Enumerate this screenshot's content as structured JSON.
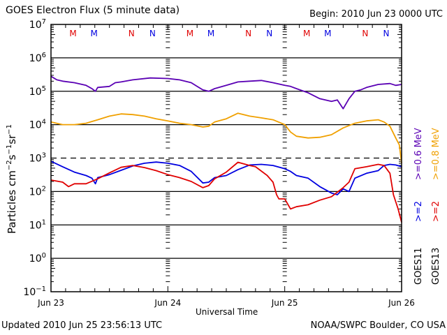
{
  "header": {
    "title": "GOES Electron Flux (5 minute data)",
    "begin": "Begin: 2010 Jun 23 0000 UTC"
  },
  "footer": {
    "updated": "Updated 2010 Jun 25 23:56:13 UTC",
    "credit": "NOAA/SWPC Boulder, CO USA"
  },
  "chart_data": {
    "type": "line",
    "title": "GOES Electron Flux (5 minute data)",
    "xlabel": "Universal Time",
    "ylabel": "Particles cm⁻²s⁻¹sr⁻¹",
    "yscale": "log",
    "ylim": [
      0.1,
      10000000
    ],
    "xlim_days": [
      0,
      3
    ],
    "x_tick_labels": [
      "Jun 23",
      "Jun 24",
      "Jun 25",
      "Jun 26"
    ],
    "y_tick_labels": [
      {
        "exp": "7",
        "value": 10000000
      },
      {
        "exp": "6",
        "value": 1000000
      },
      {
        "exp": "5",
        "value": 100000
      },
      {
        "exp": "4",
        "value": 10000
      },
      {
        "exp": "3",
        "value": 1000
      },
      {
        "exp": "2",
        "value": 100
      },
      {
        "exp": "1",
        "value": 10
      },
      {
        "exp": "0",
        "value": 1
      },
      {
        "exp": "−1",
        "value": 0.1
      }
    ],
    "gridlines": [
      100000,
      10000,
      100,
      10,
      1,
      1000000
    ],
    "dashed_threshold": 1000,
    "markers": [
      {
        "label": "M",
        "day": 0.35,
        "color": "#e00000"
      },
      {
        "label": "M",
        "day": 0.53,
        "color": "#0000e0"
      },
      {
        "label": "N",
        "day": 0.85,
        "color": "#e00000"
      },
      {
        "label": "N",
        "day": 1.03,
        "color": "#0000e0"
      },
      {
        "label": "M",
        "day": 1.35,
        "color": "#e00000"
      },
      {
        "label": "M",
        "day": 1.53,
        "color": "#0000e0"
      },
      {
        "label": "N",
        "day": 1.85,
        "color": "#e00000"
      },
      {
        "label": "N",
        "day": 2.03,
        "color": "#0000e0"
      },
      {
        "label": "M",
        "day": 2.35,
        "color": "#e00000"
      },
      {
        "label": "M",
        "day": 2.53,
        "color": "#0000e0"
      },
      {
        "label": "N",
        "day": 2.85,
        "color": "#e00000"
      },
      {
        "label": "N",
        "day": 3.03,
        "color": "#0000e0"
      }
    ],
    "legend": [
      {
        "text": "GOES11",
        "color": "#000000"
      },
      {
        "text": "GOES13",
        "color": "#000000"
      },
      {
        "text": ">=2",
        "color": "#0000e0"
      },
      {
        "text": ">=2",
        "color": "#e00000"
      },
      {
        "text": ">=0.6 MeV",
        "color": "#5a00b4"
      },
      {
        "text": ">=0.8 MeV",
        "color": "#f0a000"
      }
    ],
    "legend_placement": "right",
    "series": [
      {
        "name": "GOES11 >=0.6 MeV",
        "color": "#5a00b4",
        "x": [
          0,
          0.05,
          0.1,
          0.2,
          0.3,
          0.35,
          0.38,
          0.4,
          0.5,
          0.55,
          0.6,
          0.7,
          0.85,
          1.0,
          1.1,
          1.2,
          1.25,
          1.3,
          1.35,
          1.4,
          1.5,
          1.6,
          1.7,
          1.8,
          1.9,
          2.0,
          2.05,
          2.1,
          2.2,
          2.3,
          2.4,
          2.45,
          2.5,
          2.55,
          2.6,
          2.65,
          2.7,
          2.8,
          2.9,
          2.95,
          3.0
        ],
        "y": [
          280000,
          220000,
          200000,
          180000,
          150000,
          120000,
          100000,
          130000,
          140000,
          180000,
          190000,
          220000,
          250000,
          240000,
          220000,
          180000,
          140000,
          110000,
          100000,
          120000,
          150000,
          190000,
          200000,
          210000,
          180000,
          150000,
          140000,
          120000,
          90000,
          60000,
          50000,
          55000,
          30000,
          60000,
          100000,
          110000,
          130000,
          160000,
          170000,
          150000,
          160000
        ]
      },
      {
        "name": "GOES13 >=0.8 MeV",
        "color": "#f0a000",
        "x": [
          0,
          0.1,
          0.2,
          0.3,
          0.4,
          0.5,
          0.6,
          0.7,
          0.8,
          0.9,
          1.0,
          1.1,
          1.2,
          1.3,
          1.35,
          1.4,
          1.5,
          1.6,
          1.7,
          1.8,
          1.9,
          2.0,
          2.05,
          2.1,
          2.2,
          2.3,
          2.4,
          2.5,
          2.6,
          2.7,
          2.8,
          2.85,
          2.9,
          2.95,
          2.98,
          3.0
        ],
        "y": [
          12000,
          10000,
          10000,
          11000,
          14000,
          18000,
          21000,
          20000,
          18000,
          15000,
          13000,
          11000,
          10000,
          8500,
          9000,
          12000,
          15000,
          22000,
          18000,
          16000,
          14000,
          10000,
          6000,
          4500,
          4000,
          4200,
          5000,
          8000,
          11000,
          13000,
          14000,
          12000,
          9000,
          4000,
          2500,
          700
        ]
      },
      {
        "name": "GOES11 >=2 MeV",
        "color": "#0000e0",
        "x": [
          0,
          0.1,
          0.2,
          0.3,
          0.35,
          0.38,
          0.4,
          0.5,
          0.6,
          0.7,
          0.8,
          0.9,
          1.0,
          1.1,
          1.2,
          1.3,
          1.35,
          1.4,
          1.5,
          1.6,
          1.7,
          1.8,
          1.9,
          2.0,
          2.05,
          2.1,
          2.2,
          2.3,
          2.4,
          2.45,
          2.5,
          2.55,
          2.6,
          2.7,
          2.8,
          2.85,
          2.9,
          2.95,
          3.0
        ],
        "y": [
          800,
          550,
          380,
          300,
          250,
          170,
          260,
          320,
          430,
          580,
          700,
          760,
          700,
          600,
          400,
          180,
          190,
          260,
          300,
          450,
          620,
          650,
          600,
          480,
          400,
          300,
          250,
          140,
          90,
          80,
          120,
          100,
          250,
          350,
          420,
          600,
          650,
          620,
          550
        ]
      },
      {
        "name": "GOES13 >=2 MeV",
        "color": "#e00000",
        "x": [
          0,
          0.1,
          0.15,
          0.2,
          0.3,
          0.4,
          0.5,
          0.6,
          0.7,
          0.8,
          0.9,
          1.0,
          1.1,
          1.2,
          1.3,
          1.35,
          1.4,
          1.5,
          1.6,
          1.7,
          1.75,
          1.85,
          1.9,
          1.93,
          1.95,
          2.0,
          2.05,
          2.1,
          2.2,
          2.3,
          2.4,
          2.5,
          2.55,
          2.6,
          2.7,
          2.8,
          2.85,
          2.9,
          2.93,
          2.97,
          3.0
        ],
        "y": [
          220,
          190,
          140,
          170,
          170,
          240,
          360,
          530,
          600,
          520,
          420,
          320,
          260,
          200,
          130,
          150,
          240,
          380,
          750,
          600,
          550,
          300,
          190,
          80,
          60,
          60,
          30,
          35,
          40,
          55,
          70,
          130,
          190,
          480,
          550,
          650,
          600,
          350,
          80,
          30,
          12
        ]
      }
    ]
  }
}
